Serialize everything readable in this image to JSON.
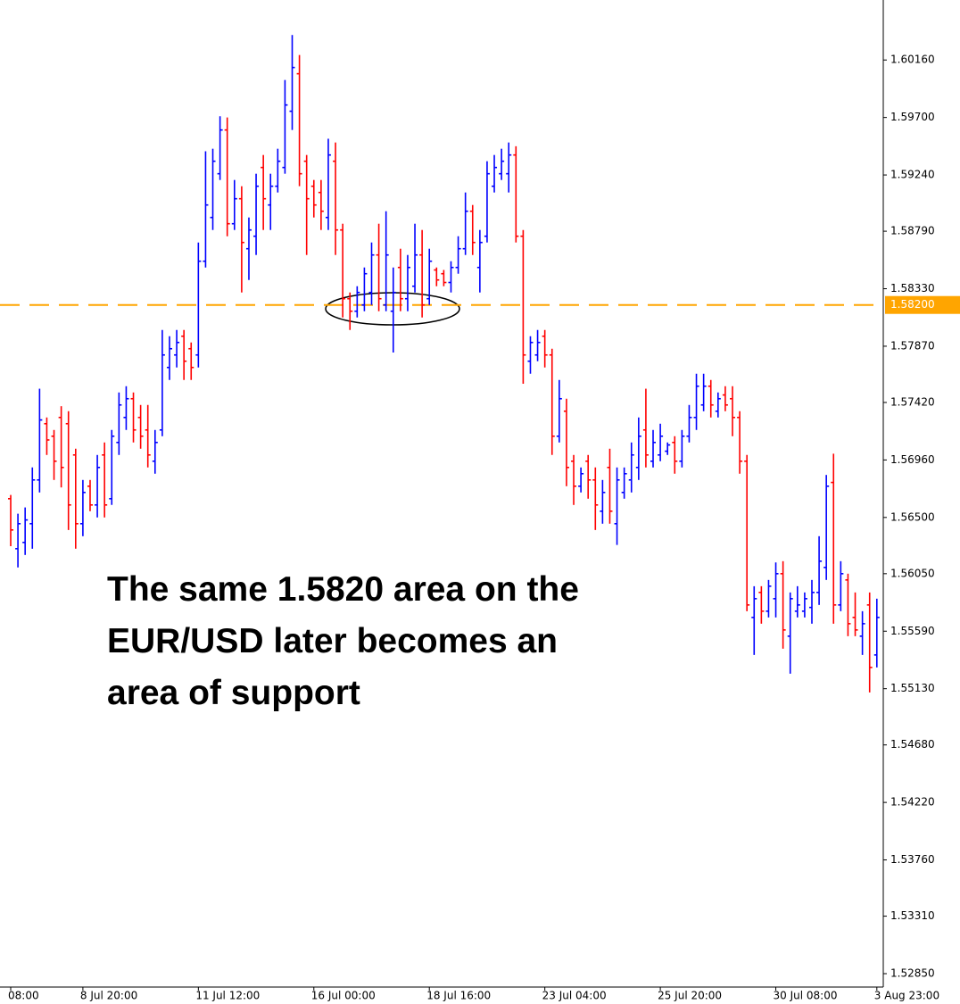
{
  "chart_data": {
    "type": "ohlc",
    "annotation": [
      "The same 1.5820 area on the",
      "EUR/USD later becomes an",
      "area of support"
    ],
    "up_color": "#0000ff",
    "down_color": "#ff0000",
    "ylim": [
      1.5275,
      1.6064
    ],
    "yticks": [
      {
        "value": 1.6016,
        "label": "1.60160"
      },
      {
        "value": 1.597,
        "label": "1.59700"
      },
      {
        "value": 1.5924,
        "label": "1.59240"
      },
      {
        "value": 1.5879,
        "label": "1.58790"
      },
      {
        "value": 1.5833,
        "label": "1.58330"
      },
      {
        "value": 1.5787,
        "label": "1.57870"
      },
      {
        "value": 1.5742,
        "label": "1.57420"
      },
      {
        "value": 1.5696,
        "label": "1.56960"
      },
      {
        "value": 1.565,
        "label": "1.56500"
      },
      {
        "value": 1.5605,
        "label": "1.56050"
      },
      {
        "value": 1.5559,
        "label": "1.55590"
      },
      {
        "value": 1.5513,
        "label": "1.55130"
      },
      {
        "value": 1.5468,
        "label": "1.54680"
      },
      {
        "value": 1.5422,
        "label": "1.54220"
      },
      {
        "value": 1.5376,
        "label": "1.53760"
      },
      {
        "value": 1.5331,
        "label": "1.53310"
      },
      {
        "value": 1.5285,
        "label": "1.52850"
      }
    ],
    "hline": {
      "value": 1.582,
      "label": "1.58200",
      "color": "#ffa500"
    },
    "categories": [
      "08:00",
      null,
      null,
      null,
      null,
      null,
      null,
      null,
      null,
      null,
      "8 Jul 20:00",
      null,
      null,
      null,
      null,
      null,
      null,
      null,
      null,
      null,
      null,
      null,
      null,
      null,
      null,
      null,
      "11 Jul 12:00",
      null,
      null,
      null,
      null,
      null,
      null,
      null,
      null,
      null,
      null,
      null,
      null,
      null,
      null,
      null,
      "16 Jul 00:00",
      null,
      null,
      null,
      null,
      null,
      null,
      null,
      null,
      null,
      null,
      null,
      null,
      null,
      null,
      null,
      "18 Jul 16:00",
      null,
      null,
      null,
      null,
      null,
      null,
      null,
      null,
      null,
      null,
      null,
      null,
      null,
      null,
      null,
      "23 Jul 04:00",
      null,
      null,
      null,
      null,
      null,
      null,
      null,
      null,
      null,
      null,
      null,
      null,
      null,
      null,
      null,
      "25 Jul 20:00",
      null,
      null,
      null,
      null,
      null,
      null,
      null,
      null,
      null,
      null,
      null,
      null,
      null,
      null,
      null,
      "30 Jul 08:00",
      null,
      null,
      null,
      null,
      null,
      null,
      null,
      null,
      null,
      null,
      null,
      null,
      null,
      "3 Aug 23:00"
    ],
    "open": [
      1.5665,
      1.5625,
      1.563,
      1.5645,
      1.568,
      1.5725,
      1.5715,
      1.573,
      1.5725,
      1.57,
      1.5645,
      1.5675,
      1.566,
      1.57,
      1.5665,
      1.571,
      1.573,
      1.5745,
      1.573,
      1.572,
      1.5695,
      1.572,
      1.577,
      1.578,
      1.5795,
      1.5785,
      1.578,
      1.5855,
      1.589,
      1.5925,
      1.596,
      1.5885,
      1.5905,
      1.5865,
      1.5875,
      1.593,
      1.59,
      1.5915,
      1.593,
      1.5975,
      1.6005,
      1.5935,
      1.5915,
      1.591,
      1.589,
      1.5935,
      1.588,
      1.5825,
      1.5815,
      1.582,
      1.583,
      1.586,
      1.582,
      1.5815,
      1.585,
      1.5825,
      1.5835,
      1.586,
      1.5825,
      1.5848,
      1.5845,
      1.5838,
      1.585,
      1.5865,
      1.5895,
      1.585,
      1.5875,
      1.5915,
      1.5925,
      1.5925,
      1.594,
      1.5875,
      1.5775,
      1.578,
      1.5795,
      1.578,
      1.5715,
      1.5735,
      1.5695,
      1.5675,
      1.5695,
      1.568,
      1.5655,
      1.569,
      1.5645,
      1.567,
      1.568,
      1.569,
      1.572,
      1.5695,
      1.57,
      1.5703,
      1.571,
      1.5695,
      1.5715,
      1.573,
      1.574,
      1.5755,
      1.5735,
      1.5748,
      1.5745,
      1.573,
      1.5695,
      1.557,
      1.559,
      1.5575,
      1.5585,
      1.5605,
      1.5555,
      1.5575,
      1.5575,
      1.5578,
      1.559,
      1.561,
      1.5678,
      1.558,
      1.56,
      1.557,
      1.5555,
      1.558,
      1.554
    ],
    "high": [
      1.5668,
      1.5653,
      1.5658,
      1.569,
      1.5753,
      1.573,
      1.572,
      1.5739,
      1.5735,
      1.5705,
      1.568,
      1.568,
      1.57,
      1.571,
      1.572,
      1.575,
      1.5755,
      1.575,
      1.574,
      1.574,
      1.572,
      1.58,
      1.5795,
      1.58,
      1.58,
      1.579,
      1.587,
      1.5943,
      1.5945,
      1.5971,
      1.597,
      1.592,
      1.5915,
      1.589,
      1.5925,
      1.594,
      1.5925,
      1.5945,
      1.6,
      1.6036,
      1.602,
      1.594,
      1.592,
      1.592,
      1.5953,
      1.595,
      1.5885,
      1.583,
      1.5835,
      1.585,
      1.587,
      1.5885,
      1.5895,
      1.585,
      1.5865,
      1.586,
      1.5885,
      1.588,
      1.5865,
      1.585,
      1.5848,
      1.5855,
      1.5875,
      1.591,
      1.59,
      1.588,
      1.5935,
      1.594,
      1.5945,
      1.595,
      1.5947,
      1.588,
      1.5795,
      1.58,
      1.58,
      1.5785,
      1.576,
      1.5745,
      1.57,
      1.569,
      1.57,
      1.569,
      1.568,
      1.5705,
      1.569,
      1.569,
      1.571,
      1.573,
      1.5753,
      1.572,
      1.5725,
      1.571,
      1.5715,
      1.572,
      1.574,
      1.5765,
      1.5765,
      1.576,
      1.575,
      1.5755,
      1.5755,
      1.5735,
      1.57,
      1.5595,
      1.5595,
      1.56,
      1.5614,
      1.5615,
      1.559,
      1.5595,
      1.559,
      1.56,
      1.5635,
      1.5684,
      1.5701,
      1.5615,
      1.5605,
      1.559,
      1.5575,
      1.559,
      1.5585
    ],
    "low": [
      1.5627,
      1.561,
      1.562,
      1.5625,
      1.567,
      1.57,
      1.568,
      1.5674,
      1.564,
      1.5625,
      1.5635,
      1.5655,
      1.565,
      1.565,
      1.566,
      1.57,
      1.572,
      1.571,
      1.5705,
      1.569,
      1.5685,
      1.5715,
      1.576,
      1.577,
      1.576,
      1.576,
      1.577,
      1.585,
      1.588,
      1.592,
      1.5875,
      1.588,
      1.583,
      1.584,
      1.586,
      1.588,
      1.588,
      1.591,
      1.5925,
      1.596,
      1.5915,
      1.586,
      1.589,
      1.588,
      1.588,
      1.586,
      1.581,
      1.58,
      1.581,
      1.5815,
      1.582,
      1.5815,
      1.5815,
      1.5782,
      1.5815,
      1.5815,
      1.583,
      1.581,
      1.582,
      1.5835,
      1.5835,
      1.583,
      1.5845,
      1.586,
      1.586,
      1.583,
      1.587,
      1.591,
      1.592,
      1.591,
      1.587,
      1.5757,
      1.5765,
      1.5775,
      1.577,
      1.57,
      1.571,
      1.5675,
      1.566,
      1.567,
      1.5665,
      1.564,
      1.5645,
      1.5645,
      1.5628,
      1.5665,
      1.567,
      1.568,
      1.569,
      1.569,
      1.5695,
      1.57,
      1.5685,
      1.569,
      1.571,
      1.572,
      1.5735,
      1.573,
      1.573,
      1.5735,
      1.5715,
      1.5685,
      1.5575,
      1.554,
      1.5565,
      1.557,
      1.557,
      1.5545,
      1.5525,
      1.557,
      1.557,
      1.5565,
      1.558,
      1.56,
      1.5565,
      1.5575,
      1.5555,
      1.5555,
      1.554,
      1.551,
      1.553
    ],
    "close": [
      1.564,
      1.5645,
      1.5648,
      1.568,
      1.5728,
      1.5712,
      1.5695,
      1.569,
      1.566,
      1.5645,
      1.567,
      1.566,
      1.569,
      1.566,
      1.5715,
      1.574,
      1.5745,
      1.572,
      1.5715,
      1.57,
      1.571,
      1.578,
      1.5785,
      1.579,
      1.5775,
      1.577,
      1.5855,
      1.59,
      1.5935,
      1.596,
      1.5885,
      1.5905,
      1.587,
      1.588,
      1.5915,
      1.5905,
      1.5915,
      1.5935,
      1.598,
      1.601,
      1.5925,
      1.5905,
      1.59,
      1.5895,
      1.594,
      1.588,
      1.5825,
      1.5815,
      1.583,
      1.5845,
      1.586,
      1.5825,
      1.586,
      1.583,
      1.5825,
      1.585,
      1.586,
      1.582,
      1.5855,
      1.584,
      1.5838,
      1.585,
      1.5865,
      1.5895,
      1.587,
      1.587,
      1.5925,
      1.593,
      1.5935,
      1.594,
      1.5875,
      1.578,
      1.579,
      1.579,
      1.578,
      1.5715,
      1.5745,
      1.569,
      1.5675,
      1.5685,
      1.568,
      1.566,
      1.567,
      1.5655,
      1.568,
      1.5685,
      1.57,
      1.5715,
      1.57,
      1.571,
      1.5715,
      1.5708,
      1.5695,
      1.5715,
      1.573,
      1.5755,
      1.5755,
      1.574,
      1.5745,
      1.574,
      1.573,
      1.5695,
      1.558,
      1.5585,
      1.5575,
      1.5595,
      1.5605,
      1.556,
      1.5585,
      1.558,
      1.5585,
      1.559,
      1.5615,
      1.5675,
      1.558,
      1.5605,
      1.5565,
      1.556,
      1.5565,
      1.553,
      1.557
    ]
  }
}
